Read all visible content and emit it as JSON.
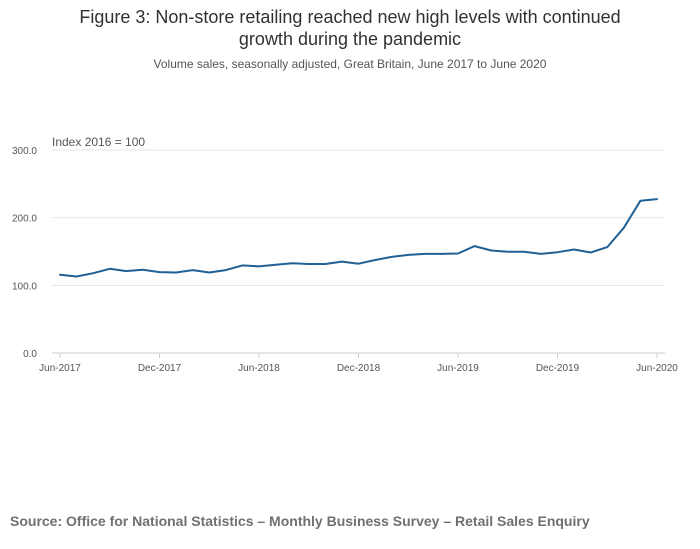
{
  "title_lines": [
    "Figure 3: Non-store retailing reached new high levels with continued",
    "growth during the pandemic"
  ],
  "subtitle": "Volume sales, seasonally adjusted, Great Britain, June 2017 to June 2020",
  "source": "Source: Office for National Statistics – Monthly Business Survey – Retail Sales Enquiry",
  "colors": {
    "series": "#206095",
    "grid": "#e6e6e6",
    "axis": "#cccccc",
    "text": "#555555"
  },
  "chart_data": {
    "type": "line",
    "ylabel": "Index 2016 = 100",
    "ylim": [
      0,
      300
    ],
    "yticks": [
      0,
      100,
      200,
      300
    ],
    "ytick_labels": [
      "0.0",
      "100.0",
      "200.0",
      "300.0"
    ],
    "xticks": [
      "Jun-2017",
      "Dec-2017",
      "Jun-2018",
      "Dec-2018",
      "Jun-2019",
      "Dec-2019",
      "Jun-2020"
    ],
    "x": [
      "Jun-2017",
      "Jul-2017",
      "Aug-2017",
      "Sep-2017",
      "Oct-2017",
      "Nov-2017",
      "Dec-2017",
      "Jan-2018",
      "Feb-2018",
      "Mar-2018",
      "Apr-2018",
      "May-2018",
      "Jun-2018",
      "Jul-2018",
      "Aug-2018",
      "Sep-2018",
      "Oct-2018",
      "Nov-2018",
      "Dec-2018",
      "Jan-2019",
      "Feb-2019",
      "Mar-2019",
      "Apr-2019",
      "May-2019",
      "Jun-2019",
      "Jul-2019",
      "Aug-2019",
      "Sep-2019",
      "Oct-2019",
      "Nov-2019",
      "Dec-2019",
      "Jan-2020",
      "Feb-2020",
      "Mar-2020",
      "Apr-2020",
      "May-2020",
      "Jun-2020"
    ],
    "series": [
      {
        "values": [
          115.5,
          113.0,
          118.0,
          124.5,
          121.0,
          123.0,
          119.5,
          119.0,
          122.5,
          119.0,
          122.5,
          129.5,
          128.0,
          130.5,
          132.5,
          131.5,
          131.5,
          135.0,
          132.0,
          137.5,
          142.0,
          145.0,
          146.5,
          146.5,
          147.0,
          158.0,
          151.5,
          149.5,
          149.5,
          146.5,
          149.0,
          153.0,
          148.5,
          156.5,
          185.0,
          225.0,
          227.5
        ]
      }
    ],
    "grid": true,
    "legend": "none"
  }
}
